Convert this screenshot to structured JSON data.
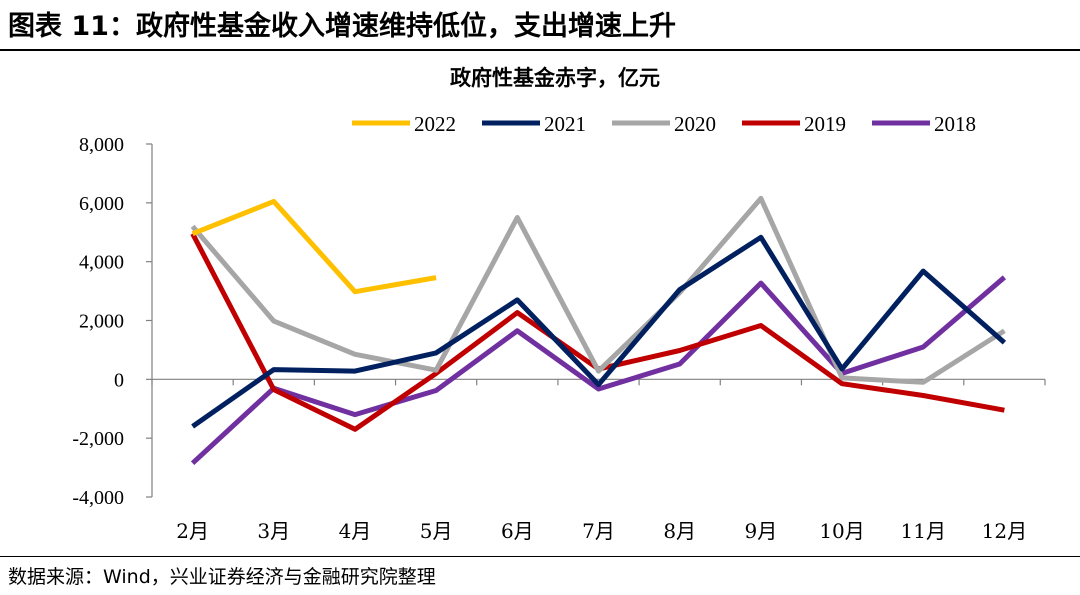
{
  "figure": {
    "caption": "图表 11：政府性基金收入增速维持低位，支出增速上升",
    "source": "数据来源：Wind，兴业证券经济与金融研究院整理"
  },
  "chart_data": {
    "type": "line",
    "title": "政府性基金赤字，亿元",
    "xlabel": "",
    "ylabel": "",
    "categories": [
      "2月",
      "3月",
      "4月",
      "5月",
      "6月",
      "7月",
      "8月",
      "9月",
      "10月",
      "11月",
      "12月"
    ],
    "ylim": [
      -4000,
      8000
    ],
    "yticks": [
      -4000,
      -2000,
      0,
      2000,
      4000,
      6000,
      8000
    ],
    "ytick_labels": [
      "-4,000",
      "-2,000",
      "0",
      "2,000",
      "4,000",
      "6,000",
      "8,000"
    ],
    "legend_position": "top-center",
    "series": [
      {
        "name": "2022",
        "color": "#FFC000",
        "values": [
          4950,
          6050,
          2980,
          3460,
          null,
          null,
          null,
          null,
          null,
          null,
          null
        ]
      },
      {
        "name": "2021",
        "color": "#002060",
        "values": [
          -1600,
          330,
          280,
          900,
          2700,
          -180,
          3050,
          4830,
          350,
          3680,
          1250
        ]
      },
      {
        "name": "2020",
        "color": "#A6A6A6",
        "values": [
          5200,
          1980,
          850,
          310,
          5500,
          280,
          2950,
          6150,
          50,
          -100,
          1650
        ]
      },
      {
        "name": "2019",
        "color": "#C00000",
        "values": [
          4950,
          -350,
          -1700,
          200,
          2270,
          350,
          980,
          1830,
          -150,
          -550,
          -1050
        ]
      },
      {
        "name": "2018",
        "color": "#7030A0",
        "values": [
          -2850,
          -300,
          -1200,
          -380,
          1650,
          -330,
          520,
          3270,
          200,
          1100,
          3470
        ]
      }
    ]
  }
}
